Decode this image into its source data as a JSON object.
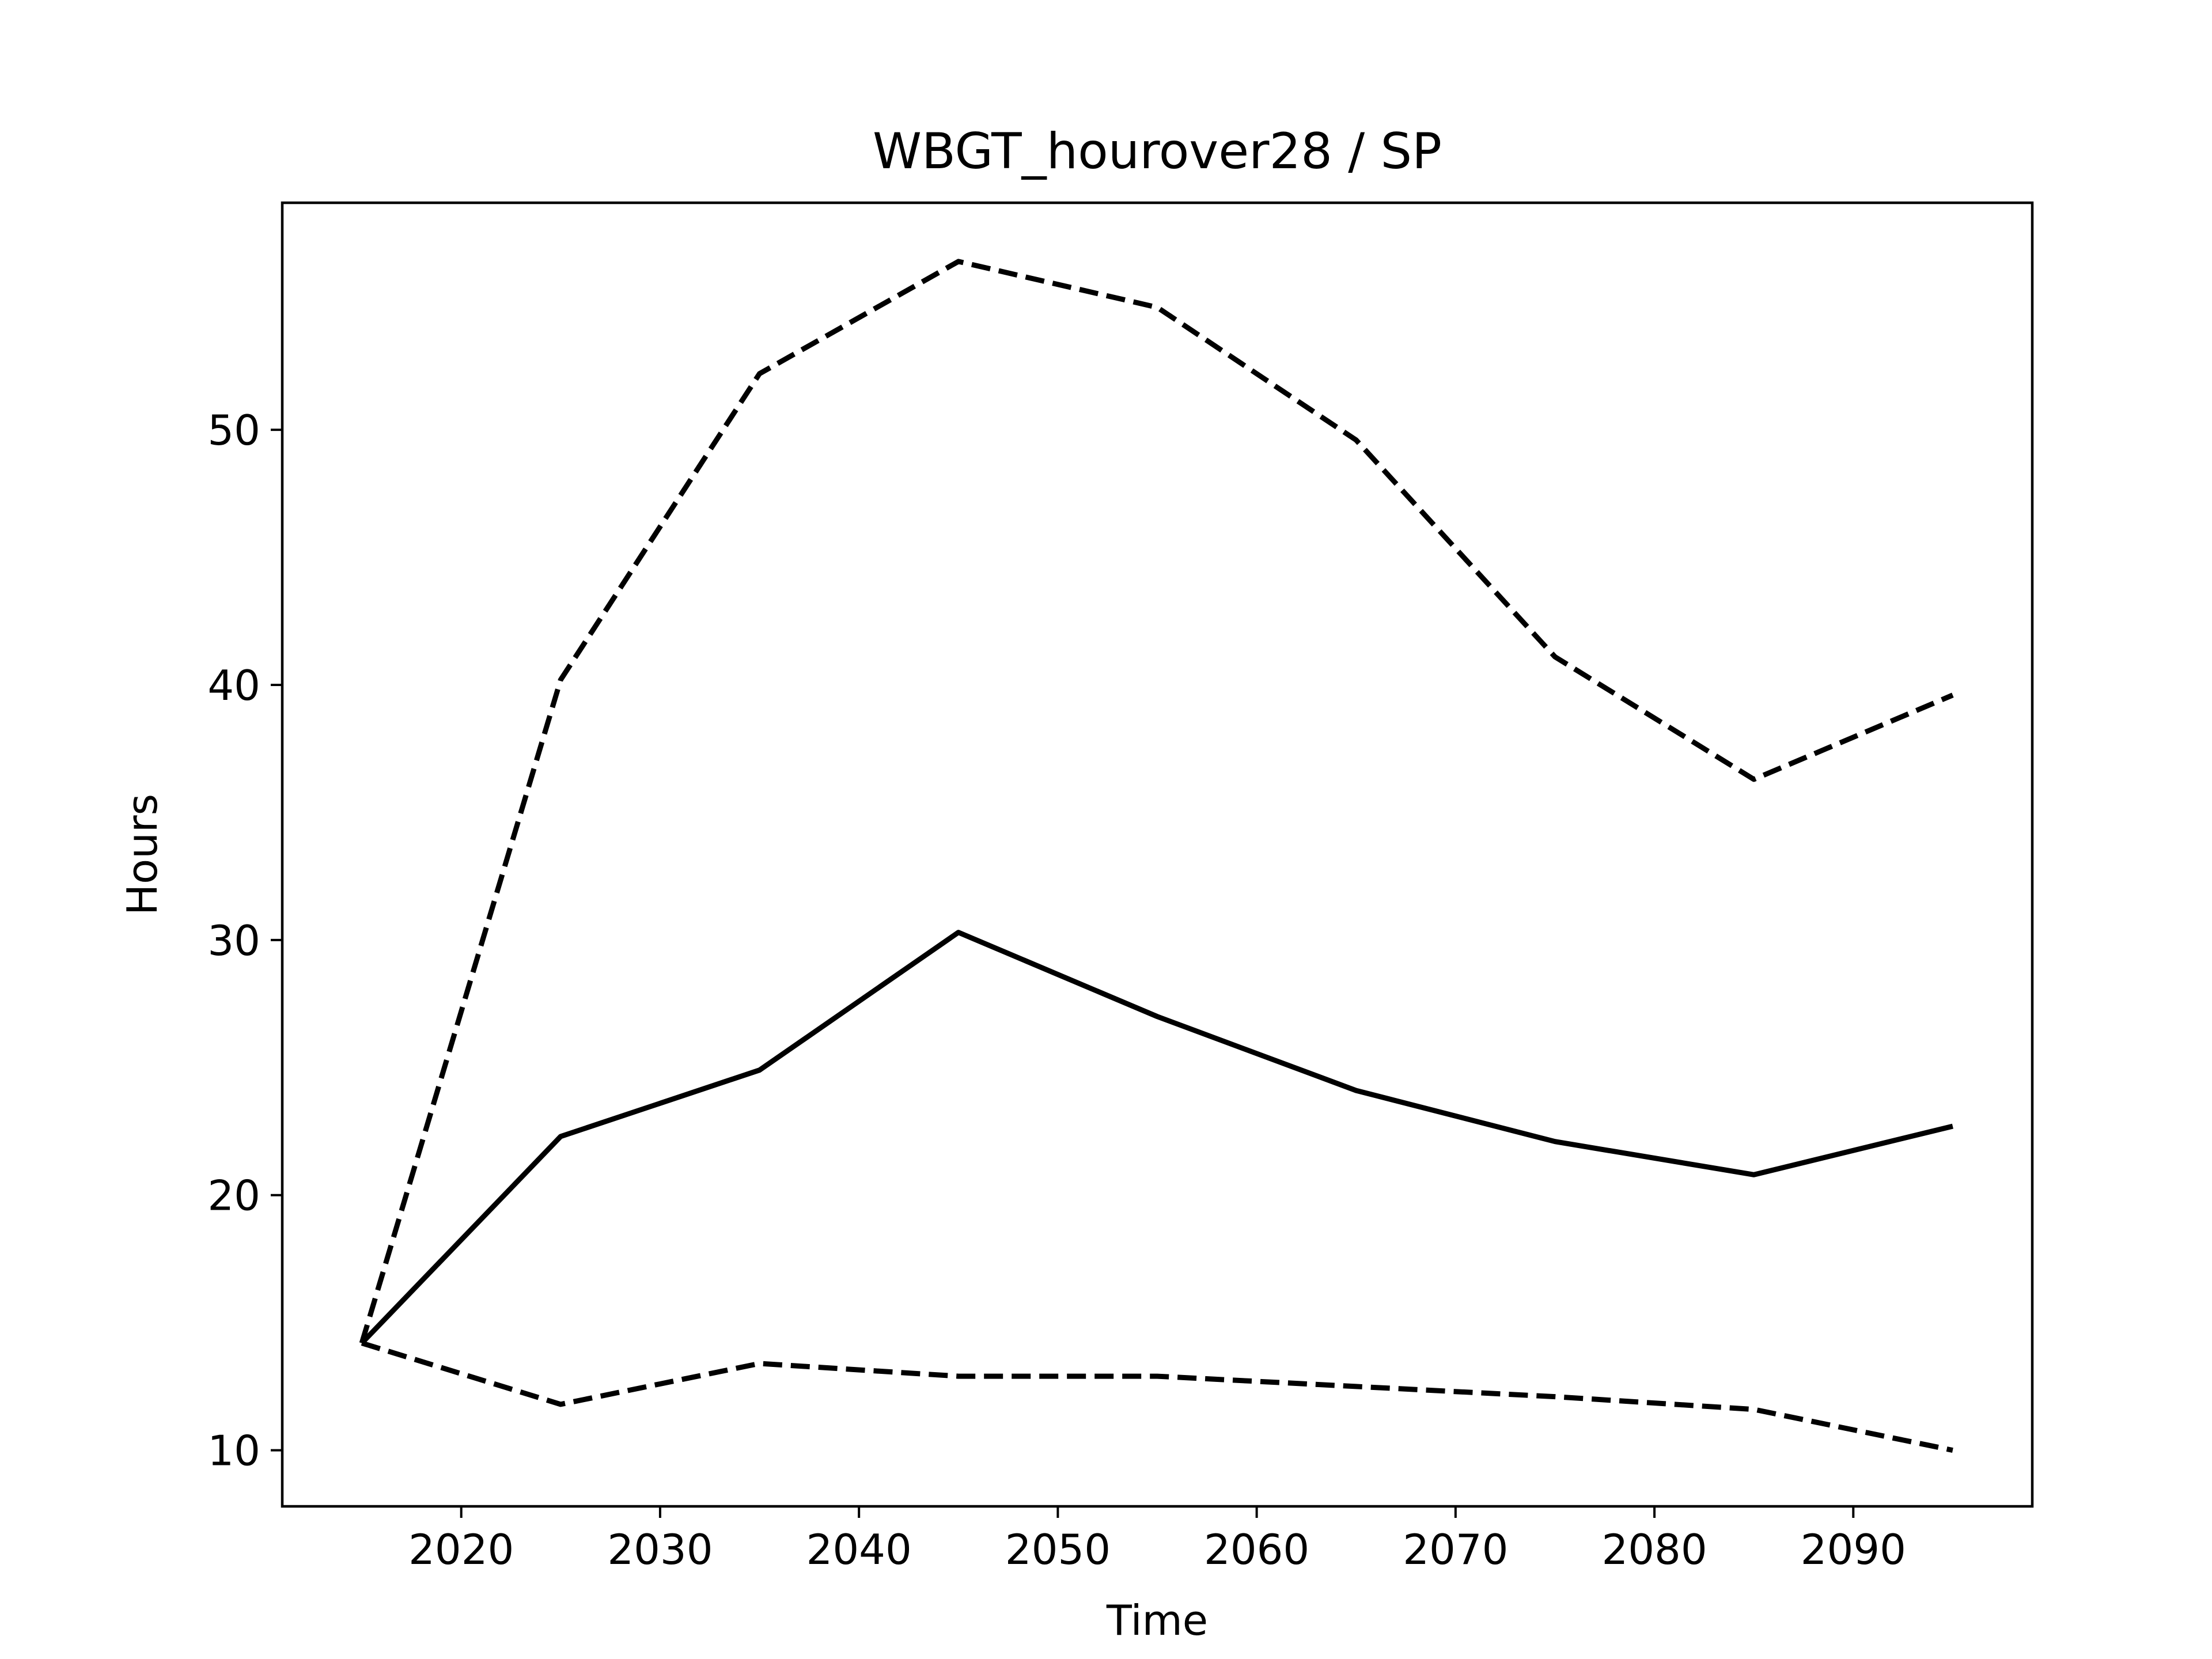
{
  "chart_data": {
    "type": "line",
    "title": "WBGT_hourover28 / SP",
    "xlabel": "Time",
    "ylabel": "Hours",
    "xlim": [
      2011,
      2099
    ],
    "ylim": [
      7.8,
      58.9
    ],
    "xticks": [
      2020,
      2030,
      2040,
      2050,
      2060,
      2070,
      2080,
      2090
    ],
    "yticks": [
      10,
      20,
      30,
      40,
      50
    ],
    "grid": false,
    "legend": "none",
    "x": [
      2015,
      2025,
      2035,
      2045,
      2055,
      2065,
      2075,
      2085,
      2095
    ],
    "series": [
      {
        "style": "dashed",
        "color": "#000000",
        "values": [
          14.2,
          40.2,
          52.2,
          56.6,
          54.8,
          49.6,
          41.1,
          36.3,
          39.6
        ]
      },
      {
        "style": "solid",
        "color": "#000000",
        "values": [
          14.2,
          22.3,
          24.9,
          30.3,
          27.0,
          24.1,
          22.1,
          20.8,
          22.7
        ]
      },
      {
        "style": "dashed",
        "color": "#000000",
        "values": [
          14.2,
          11.8,
          13.4,
          12.9,
          12.9,
          12.5,
          12.1,
          11.6,
          10.0
        ]
      }
    ]
  }
}
